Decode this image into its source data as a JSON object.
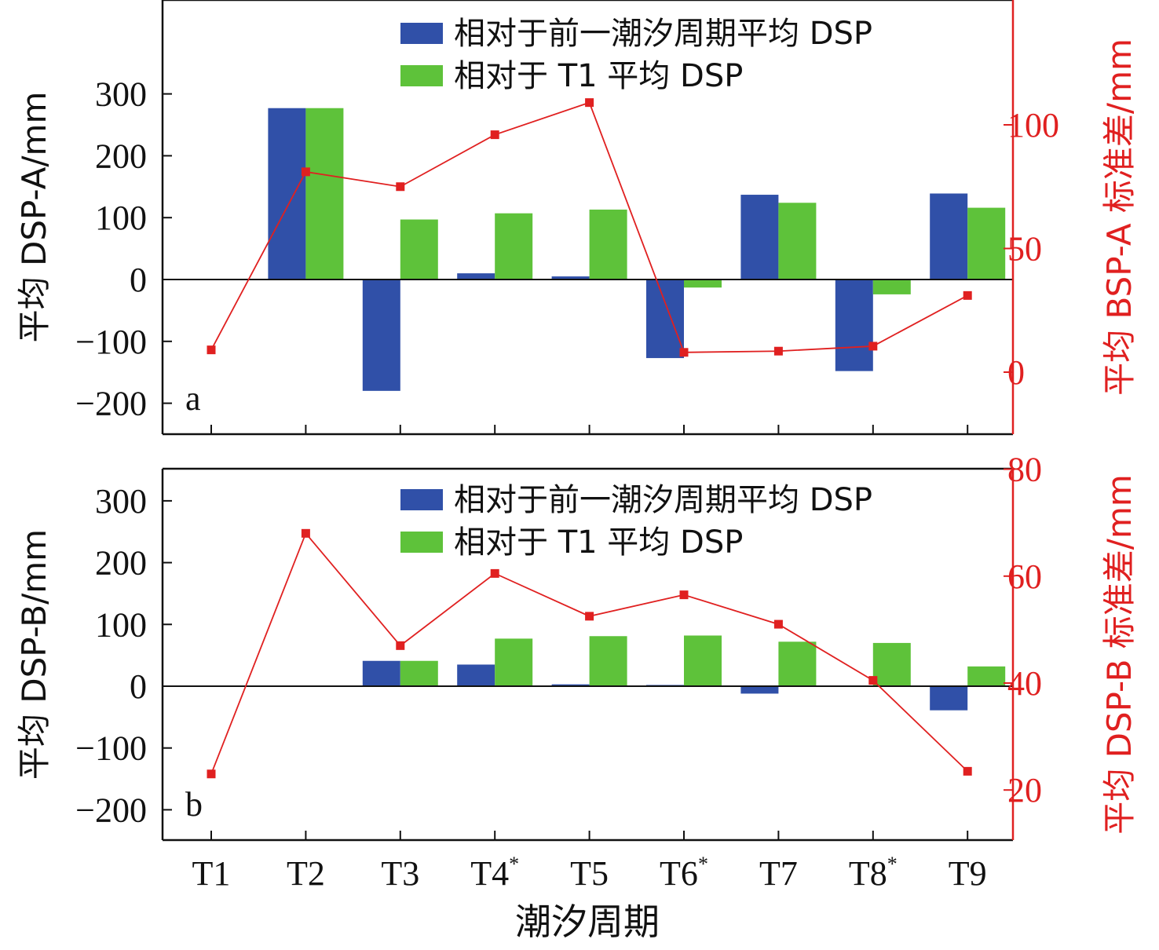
{
  "colors": {
    "blue": "#3050a8",
    "green": "#5ec23a",
    "red": "#e02020",
    "axis": "#111111"
  },
  "x_axis": {
    "label": "潮汐周期",
    "categories": [
      "T1",
      "T2",
      "T3",
      "T4",
      "T5",
      "T6",
      "T7",
      "T8",
      "T9"
    ],
    "superscripts": [
      "",
      "",
      "",
      "*",
      "",
      "*",
      "",
      "*",
      ""
    ]
  },
  "chart_data": [
    {
      "panel": "a",
      "type": "bar",
      "ylabel": "平均 DSP-A/mm",
      "ylim": [
        -250,
        450
      ],
      "yticks": [
        -200,
        -100,
        0,
        100,
        200,
        300
      ],
      "y2label": "平均 BSP-A 标准差/mm",
      "y2lim": [
        -25,
        145
      ],
      "y2ticks": [
        0,
        50,
        100
      ],
      "legend_position": "top-right",
      "series": [
        {
          "name": "相对于前一潮汐周期平均 DSP",
          "kind": "bar",
          "axis": "left",
          "values": [
            null,
            277,
            -180,
            10,
            5,
            -127,
            137,
            -148,
            139
          ]
        },
        {
          "name": "相对于 T1 平均 DSP",
          "kind": "bar",
          "axis": "left",
          "values": [
            null,
            277,
            97,
            107,
            113,
            -13,
            124,
            -24,
            116
          ]
        },
        {
          "kind": "line",
          "axis": "right",
          "values": [
            9,
            81,
            75,
            96,
            109,
            8,
            8.5,
            10.5,
            31
          ]
        }
      ]
    },
    {
      "panel": "b",
      "type": "bar",
      "ylabel": "平均 DSP-B/mm",
      "ylim": [
        -250,
        350
      ],
      "yticks": [
        -200,
        -100,
        0,
        100,
        200,
        300
      ],
      "y2label": "平均 DSP-B 标准差/mm",
      "y2lim": [
        10,
        80
      ],
      "y2ticks": [
        20,
        40,
        60,
        80
      ],
      "legend_position": "top-right",
      "series": [
        {
          "name": "相对于前一潮汐周期平均 DSP",
          "kind": "bar",
          "axis": "left",
          "values": [
            null,
            null,
            41,
            35,
            3,
            2,
            -12,
            null,
            -39
          ]
        },
        {
          "name": "相对于 T1 平均 DSP",
          "kind": "bar",
          "axis": "left",
          "values": [
            null,
            null,
            41,
            77,
            81,
            82,
            72,
            70,
            32
          ]
        },
        {
          "kind": "line",
          "axis": "right",
          "values": [
            23,
            68,
            47,
            60.5,
            52.5,
            56.5,
            51,
            40.5,
            23.5
          ]
        }
      ]
    }
  ]
}
